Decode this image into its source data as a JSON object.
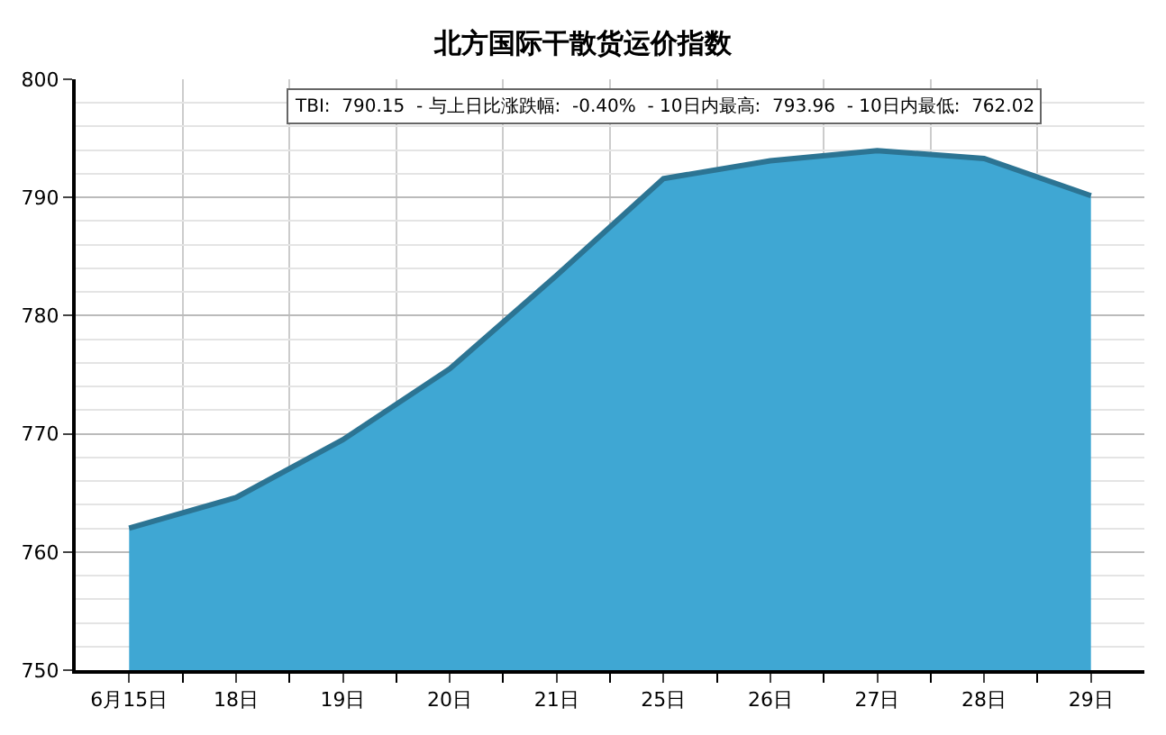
{
  "chart_data": {
    "type": "area",
    "title": "北方国际干散货运价指数",
    "categories": [
      "6月15日",
      "18日",
      "19日",
      "20日",
      "21日",
      "25日",
      "26日",
      "27日",
      "28日",
      "29日"
    ],
    "values": [
      762.02,
      764.6,
      769.5,
      775.5,
      783.4,
      791.6,
      793.1,
      793.96,
      793.3,
      790.15
    ],
    "color": "#3fa7d3",
    "ylim": [
      750,
      800
    ],
    "yticks": [
      750,
      760,
      770,
      780,
      790,
      800
    ],
    "grid": true,
    "annotations": [
      "TBI:  790.15  - 与上日比涨跌幅:  -0.40%  - 10日内最高:  793.96  - 10日内最低:  762.02"
    ]
  }
}
